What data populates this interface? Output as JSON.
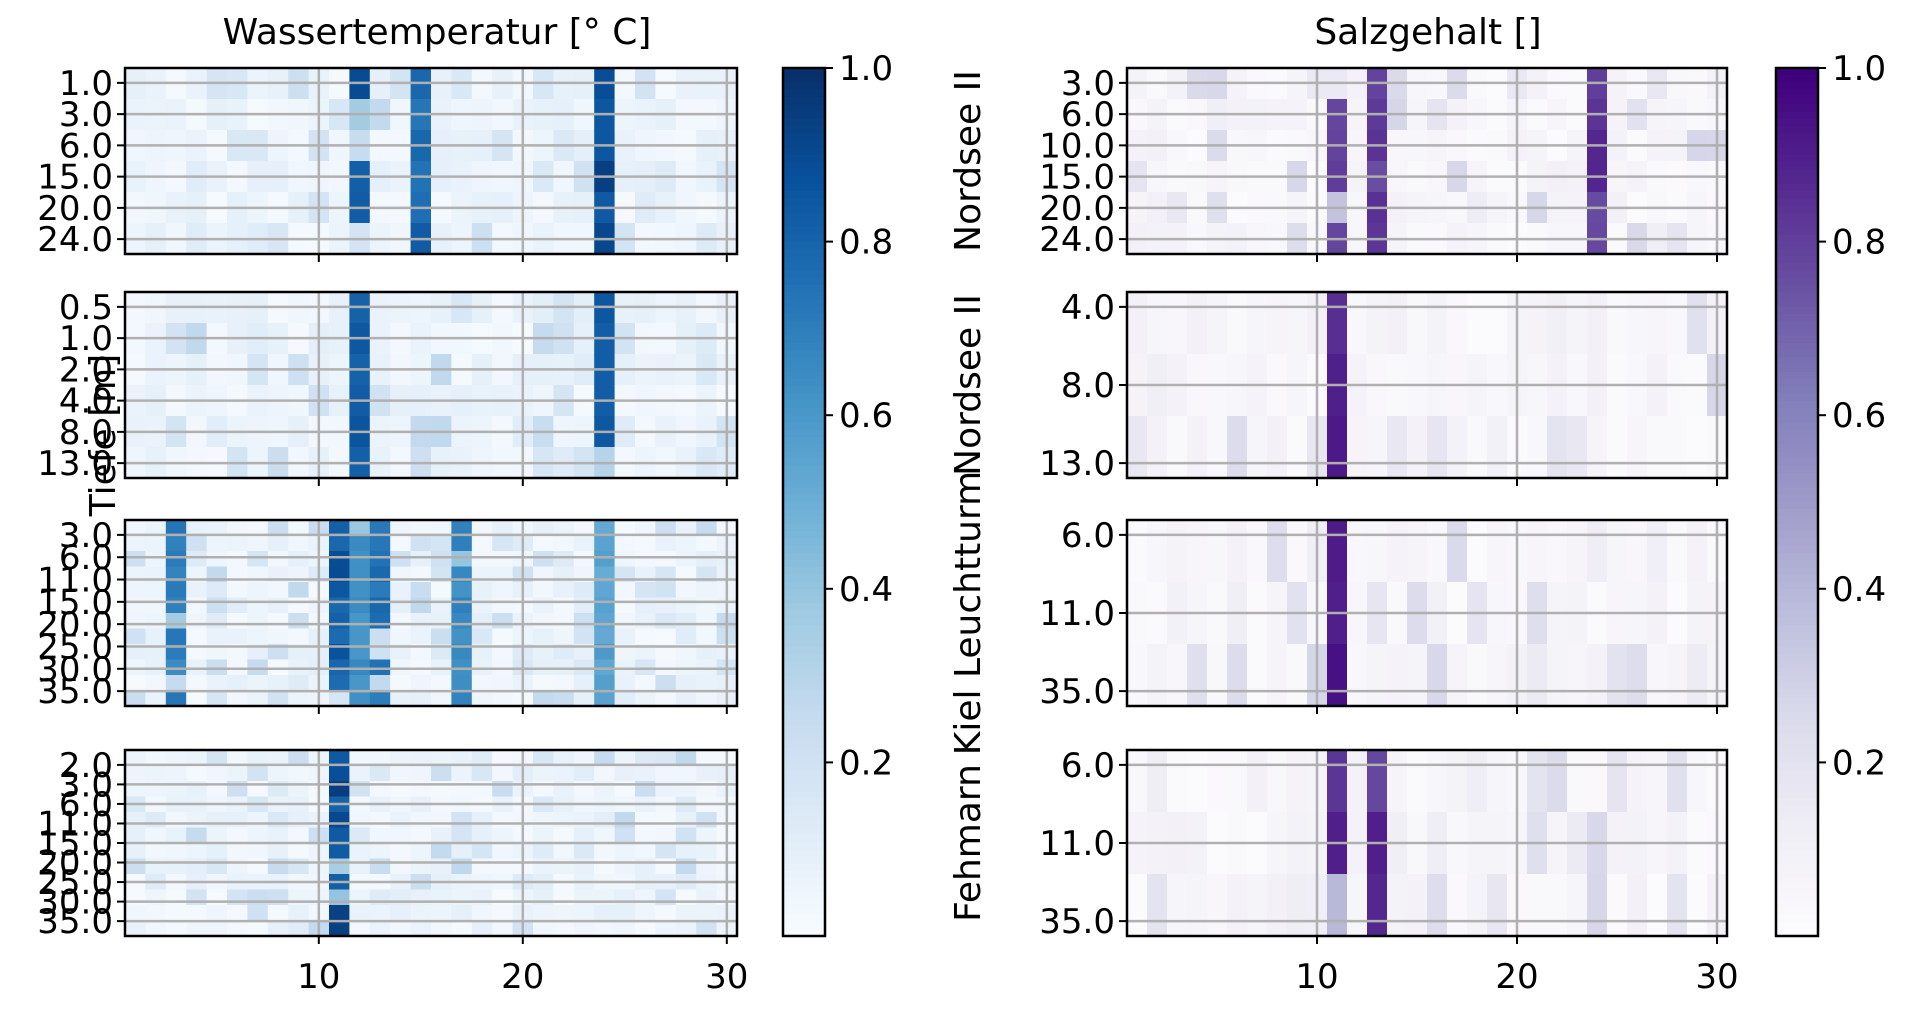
{
  "chart_data": {
    "type": "heatmap",
    "x_ticks": [
      "10",
      "20",
      "30"
    ],
    "x_tick_values": [
      10,
      20,
      30
    ],
    "xlim": [
      0.5,
      30.5
    ],
    "y_axis_label": "Tiefe [m]",
    "panels": [
      {
        "title": "Wassertemperatur [° C]",
        "colormap": "Blues",
        "colorbar_ticks": [
          "0.2",
          "0.4",
          "0.6",
          "0.8",
          "1.0"
        ],
        "colorbar_range": [
          0.0,
          1.0
        ],
        "stations": [
          {
            "name": "Nordsee II",
            "y_labels": [
              "1.0",
              "3.0",
              "6.0",
              "15.0",
              "20.0",
              "24.0"
            ],
            "hot_columns": [
              [
                12,
                0.95
              ],
              [
                15,
                0.85
              ],
              [
                24,
                0.95
              ]
            ],
            "rows": 6
          },
          {
            "name": "Nordsee II",
            "y_labels": [
              "0.5",
              "1.0",
              "2.0",
              "4.0",
              "8.0",
              "13.0"
            ],
            "hot_columns": [
              [
                12,
                0.9
              ],
              [
                24,
                0.9
              ]
            ],
            "rows": 6
          },
          {
            "name": "Kiel Leuchtturm",
            "y_labels": [
              "3.0",
              "6.0",
              "11.0",
              "15.0",
              "20.0",
              "25.0",
              "30.0",
              "35.0"
            ],
            "hot_columns": [
              [
                3,
                0.75
              ],
              [
                11,
                0.9
              ],
              [
                12,
                0.7
              ],
              [
                13,
                0.8
              ],
              [
                17,
                0.7
              ],
              [
                24,
                0.6
              ]
            ],
            "rows": 12
          },
          {
            "name": "Fehmarn",
            "y_labels": [
              "2.0",
              "3.0",
              "6.0",
              "11.0",
              "15.0",
              "20.0",
              "25.0",
              "30.0",
              "35.0"
            ],
            "hot_columns": [
              [
                11,
                0.95
              ]
            ],
            "rows": 12
          }
        ]
      },
      {
        "title": "Salzgehalt []",
        "colormap": "Purples",
        "colorbar_ticks": [
          "0.2",
          "0.4",
          "0.6",
          "0.8",
          "1.0"
        ],
        "colorbar_range": [
          0.0,
          1.0
        ],
        "stations": [
          {
            "name": "Nordsee II",
            "y_labels": [
              "3.0",
              "6.0",
              "10.0",
              "15.0",
              "20.0",
              "24.0"
            ],
            "hot_columns": [
              [
                11,
                0.9
              ],
              [
                13,
                0.85
              ],
              [
                24,
                0.9
              ]
            ],
            "rows": 6
          },
          {
            "name": "Nordsee II",
            "y_labels": [
              "4.0",
              "8.0",
              "13.0"
            ],
            "hot_columns": [
              [
                11,
                0.95
              ]
            ],
            "rows": 3
          },
          {
            "name": "Kiel Leuchtturm",
            "y_labels": [
              "6.0",
              "11.0",
              "35.0"
            ],
            "hot_columns": [
              [
                11,
                0.95
              ]
            ],
            "rows": 3
          },
          {
            "name": "Fehmarn",
            "y_labels": [
              "6.0",
              "11.0",
              "35.0"
            ],
            "hot_columns": [
              [
                11,
                0.95
              ],
              [
                13,
                0.9
              ]
            ],
            "rows": 3
          }
        ]
      }
    ]
  }
}
